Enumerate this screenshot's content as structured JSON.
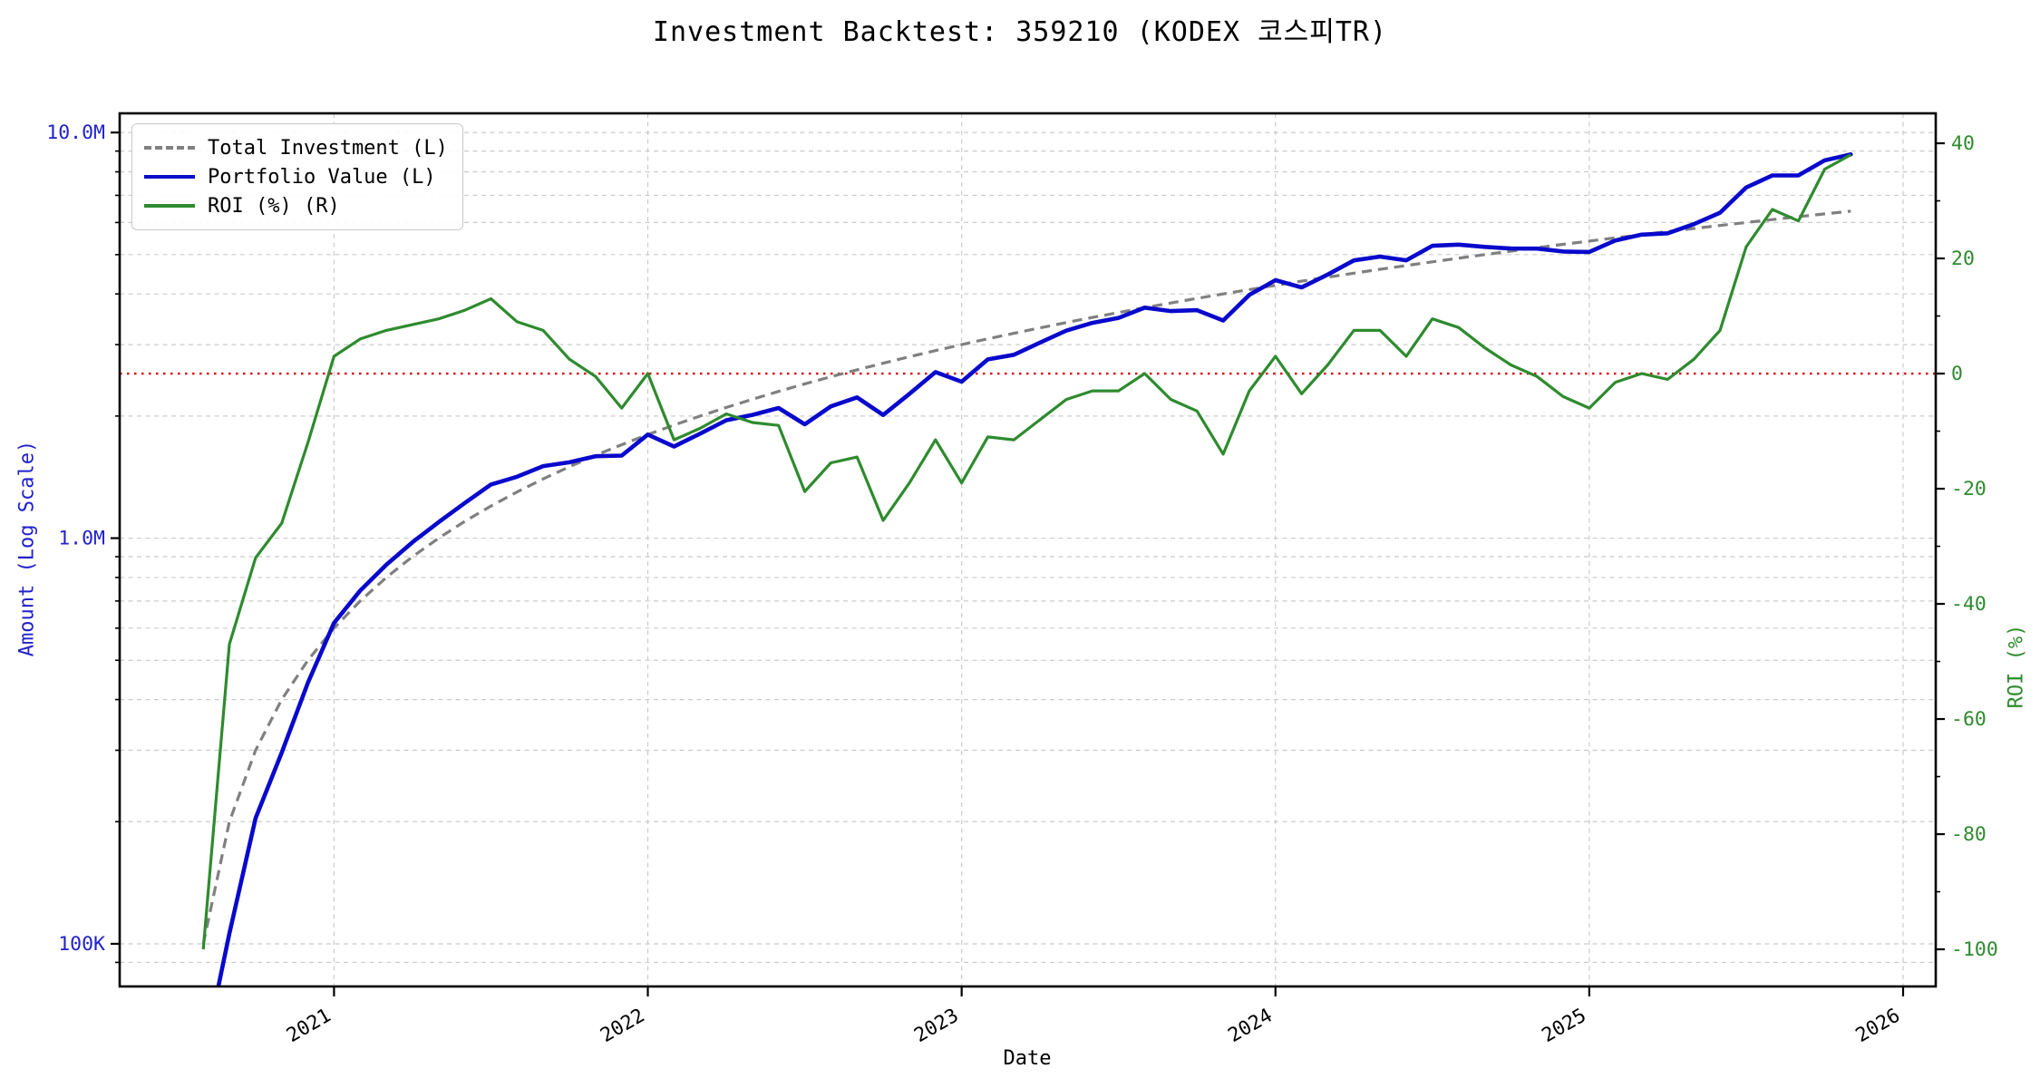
{
  "chart_data": {
    "type": "line",
    "title": "Investment Backtest: 359210 (KODEX 코스피TR)",
    "xlabel": "Date",
    "ylabel_left": "Amount (Log Scale)",
    "ylabel_right": "ROI (%)",
    "grid": true,
    "legend_position": "upper-left",
    "xlim": [
      2020.317,
      2026.104
    ],
    "ylim_left": [
      78500,
      11150000
    ],
    "ylim_right": [
      -106.45,
      45.2
    ],
    "x_ticks": [
      {
        "v": 2021,
        "label": "2021"
      },
      {
        "v": 2022,
        "label": "2022"
      },
      {
        "v": 2023,
        "label": "2023"
      },
      {
        "v": 2024,
        "label": "2024"
      },
      {
        "v": 2025,
        "label": "2025"
      },
      {
        "v": 2026,
        "label": "2026"
      }
    ],
    "y_left_ticks": [
      {
        "v": 100000,
        "label": "100K"
      },
      {
        "v": 1000000,
        "label": "1.0M"
      },
      {
        "v": 10000000,
        "label": "10.0M"
      }
    ],
    "y_left_minor": [
      90000,
      200000,
      300000,
      400000,
      500000,
      600000,
      700000,
      800000,
      900000,
      2000000,
      3000000,
      4000000,
      5000000,
      6000000,
      7000000,
      8000000,
      9000000
    ],
    "y_right_ticks": [
      {
        "v": -100,
        "label": "-100"
      },
      {
        "v": -80,
        "label": "-80"
      },
      {
        "v": -60,
        "label": "-60"
      },
      {
        "v": -40,
        "label": "-40"
      },
      {
        "v": -20,
        "label": "-20"
      },
      {
        "v": 0,
        "label": "0"
      },
      {
        "v": 20,
        "label": "20"
      },
      {
        "v": 40,
        "label": "40"
      }
    ],
    "y_right_minor": [
      -90,
      -70,
      -50,
      -30,
      -10,
      10,
      30
    ],
    "zero_line": {
      "axis": "right",
      "value": 0,
      "color": "#dd0000"
    },
    "colors": {
      "background": "#ffffff",
      "plot_border": "#000000",
      "grid": "#cbcbcb",
      "total_investment": "#808080",
      "portfolio_value": "#0909cc",
      "roi": "#2e8b2e",
      "zero_line": "#dd0000",
      "left_axis_text": "#2222cc",
      "right_axis_text": "#2e8b2e",
      "x_axis_text": "#000000"
    },
    "legend": {
      "items": [
        {
          "label": "Total Investment (L)",
          "color": "#808080",
          "dash": true
        },
        {
          "label": "Portfolio Value (L)",
          "color": "#0909cc",
          "dash": false
        },
        {
          "label": "ROI (%) (R)",
          "color": "#2e8b2e",
          "dash": false
        }
      ]
    },
    "series": {
      "months": [
        "2020-08",
        "2020-09",
        "2020-10",
        "2020-11",
        "2020-12",
        "2021-01",
        "2021-02",
        "2021-03",
        "2021-04",
        "2021-05",
        "2021-06",
        "2021-07",
        "2021-08",
        "2021-09",
        "2021-10",
        "2021-11",
        "2021-12",
        "2022-01",
        "2022-02",
        "2022-03",
        "2022-04",
        "2022-05",
        "2022-06",
        "2022-07",
        "2022-08",
        "2022-09",
        "2022-10",
        "2022-11",
        "2022-12",
        "2023-01",
        "2023-02",
        "2023-03",
        "2023-04",
        "2023-05",
        "2023-06",
        "2023-07",
        "2023-08",
        "2023-09",
        "2023-10",
        "2023-11",
        "2023-12",
        "2024-01",
        "2024-02",
        "2024-03",
        "2024-04",
        "2024-05",
        "2024-06",
        "2024-07",
        "2024-08",
        "2024-09",
        "2024-10",
        "2024-11",
        "2024-12",
        "2025-01",
        "2025-02",
        "2025-03",
        "2025-04",
        "2025-05",
        "2025-06",
        "2025-07",
        "2025-08",
        "2025-09",
        "2025-10",
        "2025-11"
      ],
      "total_investment": [
        100000,
        200000,
        300000,
        400000,
        500000,
        600000,
        700000,
        800000,
        900000,
        1000000,
        1100000,
        1200000,
        1300000,
        1400000,
        1500000,
        1600000,
        1700000,
        1800000,
        1900000,
        2000000,
        2100000,
        2200000,
        2300000,
        2400000,
        2500000,
        2600000,
        2700000,
        2800000,
        2900000,
        3000000,
        3100000,
        3200000,
        3300000,
        3400000,
        3500000,
        3600000,
        3700000,
        3800000,
        3900000,
        4000000,
        4100000,
        4200000,
        4300000,
        4400000,
        4500000,
        4600000,
        4700000,
        4800000,
        4900000,
        5000000,
        5100000,
        5200000,
        5300000,
        5400000,
        5500000,
        5600000,
        5700000,
        5800000,
        5900000,
        6000000,
        6100000,
        6200000,
        6300000,
        6400000
      ],
      "portfolio_value": [
        0,
        106000,
        204000,
        296000,
        440000,
        618000,
        742000,
        860000,
        977000,
        1095000,
        1221000,
        1356000,
        1417000,
        1505000,
        1538000,
        1592000,
        1598000,
        1800000,
        1682000,
        1810000,
        1953000,
        2013000,
        2093000,
        1908000,
        2113000,
        2223000,
        2012000,
        2268000,
        2567000,
        2430000,
        2759000,
        2832000,
        3036000,
        3247000,
        3395000,
        3492000,
        3700000,
        3629000,
        3647000,
        3440000,
        3977000,
        4326000,
        4150000,
        4466000,
        4838000,
        4945000,
        4841000,
        5256000,
        5292000,
        5225000,
        5177000,
        5174000,
        5088000,
        5076000,
        5418000,
        5600000,
        5643000,
        5945000,
        6343000,
        7320000,
        7839000,
        7843000,
        8537000,
        8832000
      ],
      "roi_pct": [
        -100,
        -47,
        -32,
        -26,
        -12,
        3,
        6,
        7.5,
        8.5,
        9.5,
        11,
        13,
        9,
        7.5,
        2.5,
        -0.5,
        -6,
        0,
        -11.5,
        -9.5,
        -7,
        -8.5,
        -9,
        -20.5,
        -15.5,
        -14.5,
        -25.5,
        -19,
        -11.5,
        -19,
        -11,
        -11.5,
        -8,
        -4.5,
        -3,
        -3,
        0,
        -4.5,
        -6.5,
        -14,
        -3,
        3,
        -3.5,
        1.5,
        7.5,
        7.5,
        3,
        9.5,
        8,
        4.5,
        1.5,
        -0.5,
        -4,
        -6,
        -1.5,
        0,
        -1,
        2.5,
        7.5,
        22,
        28.5,
        26.5,
        35.5,
        38
      ]
    }
  }
}
